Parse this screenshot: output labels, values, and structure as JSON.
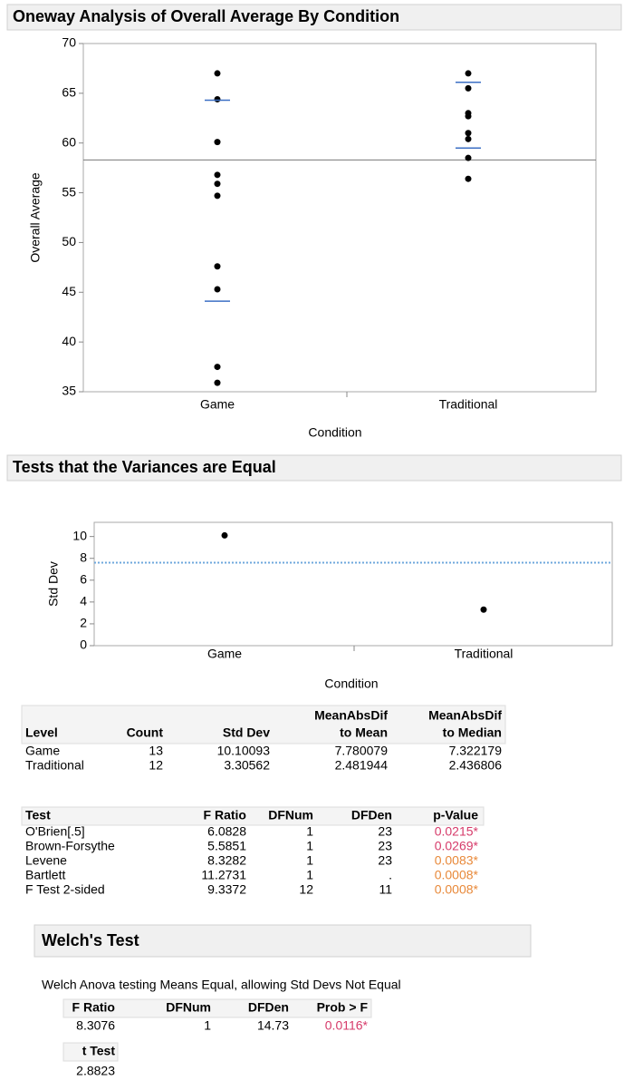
{
  "chart_data": [
    {
      "type": "strip",
      "title": "Oneway Analysis of Overall Average By Condition",
      "ylabel": "Overall Average",
      "xlabel": "Condition",
      "categories": [
        "Game",
        "Traditional"
      ],
      "values": [
        [
          67,
          64.4,
          60.1,
          56.8,
          55.9,
          54.7,
          47.6,
          45.3,
          37.5,
          35.9
        ],
        [
          67,
          65.5,
          63,
          62.7,
          61,
          60.4,
          58.5,
          56.4
        ]
      ],
      "sd_lines": [
        [
          44.1,
          64.3
        ],
        [
          59.5,
          66.1
        ]
      ],
      "reference_line": 58.3,
      "color": "#000000",
      "sd_color": "#3c6fc4",
      "reference_color": "#777777",
      "ylim": [
        35,
        70
      ],
      "yticks": [
        35,
        40,
        45,
        50,
        55,
        60,
        65,
        70
      ]
    },
    {
      "type": "strip",
      "title": "Tests that the Variances are Equal",
      "ylabel": "Std Dev",
      "xlabel": "Condition",
      "categories": [
        "Game",
        "Traditional"
      ],
      "values": [
        10.10093,
        3.30562
      ],
      "reference_line": 7.6,
      "reference_style": "dotted",
      "color": "#000000",
      "reference_color": "#6fa8dc",
      "ylim": [
        0,
        11.3
      ],
      "yticks": [
        0,
        2,
        4,
        6,
        8,
        10
      ]
    }
  ],
  "levels_table": {
    "header": [
      [
        "Level"
      ],
      [
        "Count"
      ],
      [
        "Std Dev"
      ],
      [
        "MeanAbsDif",
        "to Mean"
      ],
      [
        "MeanAbsDif",
        "to Median"
      ]
    ],
    "rows": [
      [
        "Game",
        "13",
        "10.10093",
        "7.780079",
        "7.322179"
      ],
      [
        "Traditional",
        "12",
        "3.30562",
        "2.481944",
        "2.436806"
      ]
    ]
  },
  "tests_table": {
    "header": [
      "Test",
      "F Ratio",
      "DFNum",
      "DFDen",
      "p-Value"
    ],
    "rows": [
      [
        "O'Brien[.5]",
        "6.0828",
        "1",
        "23",
        "0.0215*"
      ],
      [
        "Brown-Forsythe",
        "5.5851",
        "1",
        "23",
        "0.0269*"
      ],
      [
        "Levene",
        "8.3282",
        "1",
        "23",
        "0.0083*"
      ],
      [
        "Bartlett",
        "11.2731",
        "1",
        ".",
        "0.0008*"
      ],
      [
        "F Test 2-sided",
        "9.3372",
        "12",
        "11",
        "0.0008*"
      ]
    ],
    "pvalue_colors": [
      "#d63b6a",
      "#d63b6a",
      "#e8893a",
      "#e8893a",
      "#e8893a"
    ]
  },
  "welch": {
    "title": "Welch's Test",
    "description": "Welch Anova testing Means Equal, allowing Std Devs Not Equal",
    "header": [
      "F Ratio",
      "DFNum",
      "DFDen",
      "Prob > F"
    ],
    "row": [
      "8.3076",
      "1",
      "14.73",
      "0.0116*"
    ],
    "prob_color": "#d63b6a",
    "t_header": "t Test",
    "t_value": "2.8823"
  }
}
